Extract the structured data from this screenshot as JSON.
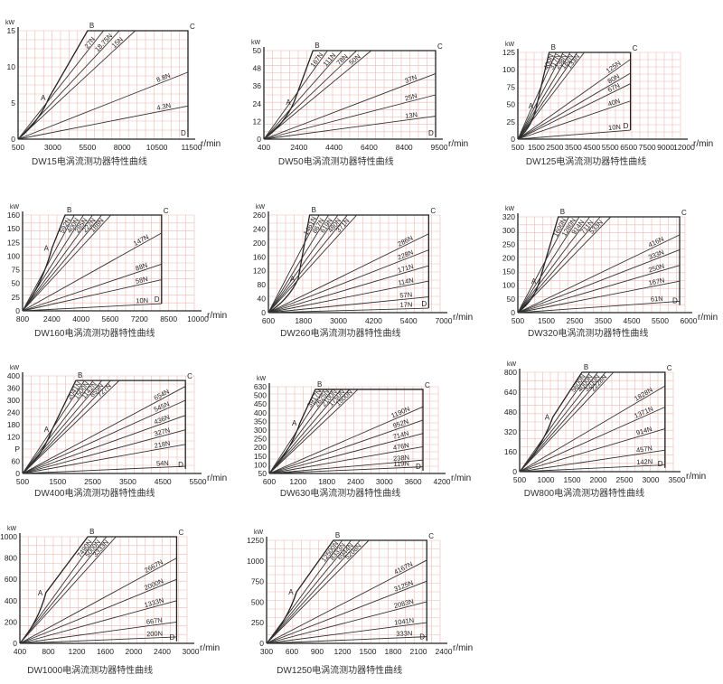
{
  "axis_unit_y": "kW",
  "axis_unit_x": "r/min",
  "point_labels": [
    "A",
    "B",
    "C",
    "D"
  ],
  "colors": {
    "grid": "#f0b8b0",
    "curve": "#333333",
    "frame": "#222222"
  },
  "chart_data": [
    {
      "type": "line",
      "title": "DW15电涡流测功器特性曲线",
      "x_ticks": [
        "500",
        "3000",
        "5500",
        "8000",
        "10500",
        "11500"
      ],
      "y_ticks": [
        "0",
        "5",
        "10",
        "15"
      ],
      "xlim": [
        500,
        11500
      ],
      "ylim": [
        0,
        17
      ],
      "y_top": 17,
      "A": [
        2500,
        6.5
      ],
      "B": [
        5000,
        17
      ],
      "C": [
        11500,
        17
      ],
      "D": [
        11500,
        0.3
      ],
      "series": [
        {
          "name": "27N",
          "values": [
            17
          ]
        },
        {
          "name": "18.75N",
          "values": [
            17
          ]
        },
        {
          "name": "15N",
          "values": [
            17
          ]
        },
        {
          "name": "8.8N",
          "values": [
            10.5
          ]
        },
        {
          "name": "4.3N",
          "values": [
            5.2
          ]
        }
      ]
    },
    {
      "type": "line",
      "title": "DW50电涡流测功器特性曲线",
      "x_ticks": [
        "400",
        "2400",
        "4400",
        "6400",
        "8400",
        "9500"
      ],
      "y_ticks": [
        "0",
        "12",
        "24",
        "36",
        "48",
        "50"
      ],
      "xlim": [
        400,
        9500
      ],
      "ylim": [
        0,
        50
      ],
      "y_top": 50,
      "A": [
        2000,
        21
      ],
      "B": [
        3000,
        50
      ],
      "C": [
        9500,
        50
      ],
      "D": [
        9500,
        1
      ],
      "series": [
        {
          "name": "167N",
          "values": [
            50
          ]
        },
        {
          "name": "111N",
          "values": [
            50
          ]
        },
        {
          "name": "78N",
          "values": [
            50
          ]
        },
        {
          "name": "50N",
          "values": [
            50
          ]
        },
        {
          "name": "37N",
          "values": [
            37
          ]
        },
        {
          "name": "25N",
          "values": [
            25
          ]
        },
        {
          "name": "13N",
          "values": [
            13
          ]
        }
      ]
    },
    {
      "type": "line",
      "title": "DW125电涡流测功器特性曲线",
      "x_ticks": [
        "500",
        "1500",
        "2500",
        "3500",
        "4500",
        "5500",
        "6500",
        "7500",
        "9000",
        "12000"
      ],
      "y_ticks": [
        "0",
        "25",
        "50",
        "75",
        "100",
        "125"
      ],
      "xlim": [
        0,
        13000
      ],
      "ylim": [
        0,
        125
      ],
      "y_top": 125,
      "A": [
        1500,
        48
      ],
      "B": [
        2500,
        125
      ],
      "C": [
        9000,
        125
      ],
      "D": [
        9000,
        13
      ],
      "series": [
        {
          "name": "400N",
          "values": [
            125
          ]
        },
        {
          "name": "317N",
          "values": [
            125
          ]
        },
        {
          "name": "238N",
          "values": [
            125
          ]
        },
        {
          "name": "182N",
          "values": [
            125
          ]
        },
        {
          "name": "133N",
          "values": [
            125
          ]
        },
        {
          "name": "125N",
          "values": [
            115
          ]
        },
        {
          "name": "80N",
          "values": [
            95
          ]
        },
        {
          "name": "67N",
          "values": [
            80
          ]
        },
        {
          "name": "40N",
          "values": [
            55
          ]
        },
        {
          "name": "10N",
          "values": [
            12
          ]
        }
      ]
    },
    {
      "type": "line",
      "title": "DW160电涡流测功器特性曲线",
      "x_ticks": [
        "800",
        "2400",
        "4000",
        "5600",
        "7200",
        "8500",
        "10000"
      ],
      "y_ticks": [
        "0",
        "25",
        "50",
        "75",
        "100",
        "125",
        "150",
        "160"
      ],
      "xlim": [
        0,
        10500
      ],
      "ylim": [
        0,
        160
      ],
      "y_top": 160,
      "A": [
        1800,
        105
      ],
      "B": [
        2600,
        160
      ],
      "C": [
        8500,
        160
      ],
      "D": [
        8500,
        12
      ],
      "series": [
        {
          "name": "592N",
          "values": [
            160
          ]
        },
        {
          "name": "400N",
          "values": [
            160
          ]
        },
        {
          "name": "285N",
          "values": [
            160
          ]
        },
        {
          "name": "222N",
          "values": [
            160
          ]
        },
        {
          "name": "188N",
          "values": [
            160
          ]
        },
        {
          "name": "147N",
          "values": [
            130
          ]
        },
        {
          "name": "88N",
          "values": [
            78
          ]
        },
        {
          "name": "58N",
          "values": [
            52
          ]
        },
        {
          "name": "10N",
          "values": [
            9
          ]
        }
      ]
    },
    {
      "type": "line",
      "title": "DW260电涡流测功器特性曲线",
      "x_ticks": [
        "600",
        "1800",
        "3000",
        "4200",
        "5400",
        "7000"
      ],
      "y_ticks": [
        "0",
        "40",
        "80",
        "120",
        "160",
        "200",
        "240",
        "260"
      ],
      "xlim": [
        0,
        7500
      ],
      "ylim": [
        0,
        260
      ],
      "y_top": 260,
      "A": [
        1300,
        90
      ],
      "B": [
        1800,
        260
      ],
      "C": [
        7000,
        260
      ],
      "D": [
        7000,
        12
      ],
      "series": [
        {
          "name": "1461N",
          "values": [
            260
          ]
        },
        {
          "name": "867N",
          "values": [
            260
          ]
        },
        {
          "name": "619N",
          "values": [
            260
          ]
        },
        {
          "name": "480N",
          "values": [
            260
          ]
        },
        {
          "name": "371N",
          "values": [
            260
          ]
        },
        {
          "name": "286N",
          "values": [
            210
          ]
        },
        {
          "name": "228N",
          "values": [
            167
          ]
        },
        {
          "name": "171N",
          "values": [
            125
          ]
        },
        {
          "name": "114N",
          "values": [
            84
          ]
        },
        {
          "name": "57N",
          "values": [
            42
          ]
        },
        {
          "name": "17N",
          "values": [
            12
          ]
        }
      ]
    },
    {
      "type": "line",
      "title": "DW320电涡流测功器特性曲线",
      "x_ticks": [
        "500",
        "1500",
        "2500",
        "3500",
        "4500",
        "5500",
        "6000"
      ],
      "y_ticks": [
        "0",
        "50",
        "100",
        "150",
        "200",
        "250",
        "300",
        "320"
      ],
      "xlim": [
        0,
        6200
      ],
      "ylim": [
        0,
        320
      ],
      "y_top": 320,
      "A": [
        800,
        105
      ],
      "B": [
        1500,
        320
      ],
      "C": [
        6000,
        320
      ],
      "D": [
        6000,
        25
      ],
      "series": [
        {
          "name": "1600N",
          "values": [
            320
          ]
        },
        {
          "name": "1280N",
          "values": [
            320
          ]
        },
        {
          "name": "914N",
          "values": [
            320
          ]
        },
        {
          "name": "711N",
          "values": [
            320
          ]
        },
        {
          "name": "533N",
          "values": [
            320
          ]
        },
        {
          "name": "416N",
          "values": [
            260
          ]
        },
        {
          "name": "333N",
          "values": [
            210
          ]
        },
        {
          "name": "250N",
          "values": [
            158
          ]
        },
        {
          "name": "167N",
          "values": [
            105
          ]
        },
        {
          "name": "61N",
          "values": [
            38
          ]
        }
      ]
    },
    {
      "type": "line",
      "title": "DW400电涡流测功器特性曲线",
      "x_ticks": [
        "500",
        "1500",
        "2500",
        "3500",
        "4500",
        "5500"
      ],
      "y_ticks": [
        "0",
        "60",
        "P",
        "120",
        "180",
        "240",
        "300",
        "360",
        "400"
      ],
      "xlim": [
        0,
        5800
      ],
      "ylim": [
        0,
        420
      ],
      "y_top": 400,
      "A": [
        1000,
        190
      ],
      "B": [
        1800,
        400
      ],
      "C": [
        5500,
        400
      ],
      "D": [
        5500,
        20
      ],
      "series": [
        {
          "name": "2041N",
          "values": [
            400
          ]
        },
        {
          "name": "1500N",
          "values": [
            400
          ]
        },
        {
          "name": "1142N",
          "values": [
            400
          ]
        },
        {
          "name": "859N",
          "values": [
            400
          ]
        },
        {
          "name": "727N",
          "values": [
            400
          ]
        },
        {
          "name": "654N",
          "values": [
            375
          ]
        },
        {
          "name": "545N",
          "values": [
            315
          ]
        },
        {
          "name": "436N",
          "values": [
            250
          ]
        },
        {
          "name": "327N",
          "values": [
            188
          ]
        },
        {
          "name": "218N",
          "values": [
            125
          ]
        },
        {
          "name": "54N",
          "values": [
            31
          ]
        }
      ]
    },
    {
      "type": "line",
      "title": "DW630电涡流测功器特性曲线",
      "x_ticks": [
        "600",
        "1200",
        "1800",
        "2400",
        "3000",
        "3600",
        "4200"
      ],
      "y_ticks": [
        "50",
        "100",
        "150",
        "200",
        "250",
        "300",
        "350",
        "400",
        "450",
        "500",
        "630"
      ],
      "xlim": [
        0,
        4400
      ],
      "ylim": [
        0,
        650
      ],
      "y_top": 630,
      "A": [
        800,
        380
      ],
      "B": [
        1200,
        630
      ],
      "C": [
        4000,
        630
      ],
      "D": [
        4000,
        20
      ],
      "series": [
        {
          "name": "3917N",
          "values": [
            630
          ]
        },
        {
          "name": "2625N",
          "values": [
            630
          ]
        },
        {
          "name": "2100N",
          "values": [
            630
          ]
        },
        {
          "name": "1750N",
          "values": [
            630
          ]
        },
        {
          "name": "1500N",
          "values": [
            630
          ]
        },
        {
          "name": "1190N",
          "values": [
            500
          ]
        },
        {
          "name": "952N",
          "values": [
            400
          ]
        },
        {
          "name": "714N",
          "values": [
            300
          ]
        },
        {
          "name": "476N",
          "values": [
            200
          ]
        },
        {
          "name": "238N",
          "values": [
            100
          ]
        },
        {
          "name": "119N",
          "values": [
            50
          ]
        }
      ]
    },
    {
      "type": "line",
      "title": "DW800电涡流测功器特性曲线",
      "x_ticks": [
        "500",
        "1000",
        "1500",
        "2000",
        "2500",
        "3000",
        "3500"
      ],
      "y_ticks": [
        "0",
        "160",
        "320",
        "480",
        "640",
        "800"
      ],
      "xlim": [
        0,
        3700
      ],
      "ylim": [
        0,
        800
      ],
      "y_top": 800,
      "A": [
        800,
        440
      ],
      "B": [
        1500,
        800
      ],
      "C": [
        3500,
        800
      ],
      "D": [
        3500,
        30
      ],
      "series": [
        {
          "name": "5600N",
          "values": [
            800
          ]
        },
        {
          "name": "4000N",
          "values": [
            800
          ]
        },
        {
          "name": "3200N",
          "values": [
            800
          ]
        },
        {
          "name": "2228N",
          "values": [
            800
          ]
        },
        {
          "name": "1828N",
          "values": [
            690
          ]
        },
        {
          "name": "1371N",
          "values": [
            520
          ]
        },
        {
          "name": "914N",
          "values": [
            345
          ]
        },
        {
          "name": "457N",
          "values": [
            173
          ]
        },
        {
          "name": "142N",
          "values": [
            54
          ]
        }
      ]
    },
    {
      "type": "line",
      "title": "DW1000电涡流测功器特性曲线",
      "x_ticks": [
        "400",
        "800",
        "1200",
        "1600",
        "2000",
        "2400",
        "3000"
      ],
      "y_ticks": [
        "0",
        "200",
        "400",
        "600",
        "800",
        "1000"
      ],
      "xlim": [
        0,
        3200
      ],
      "ylim": [
        0,
        1050
      ],
      "y_top": 1050,
      "A": [
        500,
        500
      ],
      "B": [
        1300,
        1050
      ],
      "C": [
        3000,
        1050
      ],
      "D": [
        3000,
        20
      ],
      "series": [
        {
          "name": "7490N",
          "values": [
            1050
          ]
        },
        {
          "name": "5000N",
          "values": [
            1050
          ]
        },
        {
          "name": "3333N",
          "values": [
            1050
          ]
        },
        {
          "name": "2667N",
          "values": [
            840
          ]
        },
        {
          "name": "2000N",
          "values": [
            630
          ]
        },
        {
          "name": "1333N",
          "values": [
            420
          ]
        },
        {
          "name": "667N",
          "values": [
            210
          ]
        },
        {
          "name": "200N",
          "values": [
            63
          ]
        }
      ]
    },
    {
      "type": "line",
      "title": "DW1250电涡流测功器特性曲线",
      "x_ticks": [
        "300",
        "600",
        "900",
        "1200",
        "1500",
        "1800",
        "2100",
        "2400"
      ],
      "y_ticks": [
        "0",
        "250",
        "500",
        "750",
        "1000",
        "1250"
      ],
      "xlim": [
        0,
        2600
      ],
      "ylim": [
        0,
        1300
      ],
      "y_top": 1300,
      "A": [
        450,
        650
      ],
      "B": [
        1000,
        1300
      ],
      "C": [
        2400,
        1300
      ],
      "D": [
        2400,
        30
      ],
      "series": [
        {
          "name": "12500N",
          "values": [
            1300
          ]
        },
        {
          "name": "8333N",
          "values": [
            1300
          ]
        },
        {
          "name": "6944N",
          "values": [
            1300
          ]
        },
        {
          "name": "5208N",
          "values": [
            1300
          ]
        },
        {
          "name": "4167N",
          "values": [
            1050
          ]
        },
        {
          "name": "3125N",
          "values": [
            785
          ]
        },
        {
          "name": "2083N",
          "values": [
            525
          ]
        },
        {
          "name": "1041N",
          "values": [
            262
          ]
        },
        {
          "name": "333N",
          "values": [
            84
          ]
        }
      ]
    }
  ]
}
